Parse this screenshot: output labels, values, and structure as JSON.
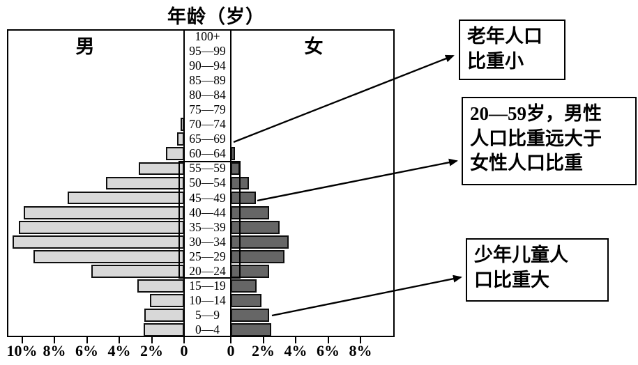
{
  "title": "年龄（岁）",
  "legend": {
    "male": "男",
    "female": "女"
  },
  "annotations": [
    {
      "id": "elderly",
      "lines": [
        "老年人口",
        "比重小"
      ]
    },
    {
      "id": "working",
      "lines": [
        "20—59岁，男性",
        "人口比重远大于",
        "女性人口比重"
      ]
    },
    {
      "id": "children",
      "lines": [
        "少年儿童人",
        "口比重大"
      ]
    }
  ],
  "chart_data": {
    "type": "bar",
    "subtype": "population-pyramid",
    "title": "年龄（岁）",
    "row_order": "top-to-bottom",
    "categories": [
      "100+",
      "95—99",
      "90—94",
      "85—89",
      "80—84",
      "75—79",
      "70—74",
      "65—69",
      "60—64",
      "55—59",
      "50—54",
      "45—49",
      "40—44",
      "35—39",
      "30—34",
      "25—29",
      "20—24",
      "15—19",
      "10—14",
      "5—9",
      "0—4"
    ],
    "series": [
      {
        "name": "男",
        "side": "left",
        "values_pct": [
          0,
          0,
          0,
          0,
          0,
          0,
          0.2,
          0.45,
          1.1,
          2.8,
          4.8,
          7.2,
          9.9,
          10.2,
          10.6,
          9.3,
          5.7,
          2.9,
          2.1,
          2.45,
          2.5
        ]
      },
      {
        "name": "女",
        "side": "right",
        "values_pct": [
          0,
          0,
          0,
          0,
          0,
          0,
          0,
          0,
          0.25,
          0.55,
          1.1,
          1.55,
          2.35,
          3.0,
          3.55,
          3.3,
          2.35,
          1.6,
          1.9,
          2.35,
          2.5
        ]
      }
    ],
    "x_axis": {
      "left_tick_labels": [
        "10%",
        "8%",
        "6%",
        "4%",
        "2%",
        "0"
      ],
      "right_tick_labels": [
        "0",
        "2%",
        "4%",
        "6%",
        "8%"
      ],
      "tick_interval_pct": 2,
      "left_max_pct": 10,
      "right_max_pct": 8,
      "grid": false
    },
    "highlighted_age_range": "20—59",
    "colors": {
      "male_bar": "#d8d8d8",
      "female_bar": "#666666",
      "outline": "#000000"
    }
  }
}
